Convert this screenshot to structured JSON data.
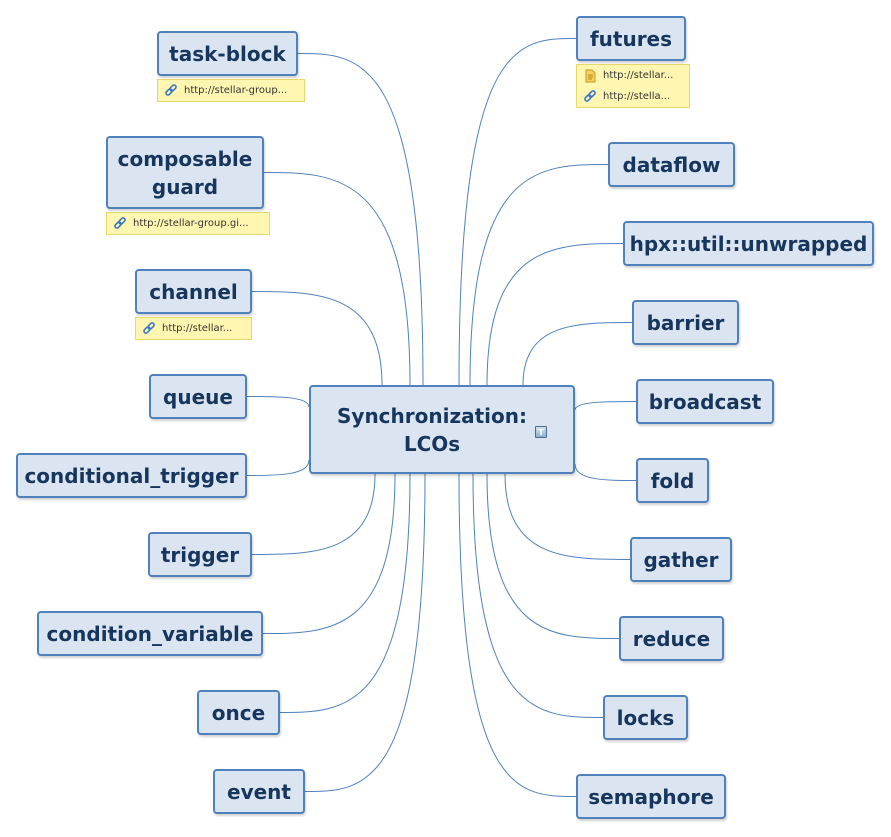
{
  "center": {
    "label": "Synchronization: LCOs",
    "icon": "note-icon",
    "icon_text": "T"
  },
  "left_topics": [
    {
      "name": "topic-task-block",
      "label": "task-block",
      "attachments": [
        {
          "icon": "link-icon",
          "text": "http://stellar-group..."
        }
      ]
    },
    {
      "name": "topic-composable-guard",
      "label": "composable guard",
      "attachments": [
        {
          "icon": "link-icon",
          "text": "http://stellar-group.gi..."
        }
      ]
    },
    {
      "name": "topic-channel",
      "label": "channel",
      "attachments": [
        {
          "icon": "link-icon",
          "text": "http://stellar..."
        }
      ]
    },
    {
      "name": "topic-queue",
      "label": "queue",
      "attachments": []
    },
    {
      "name": "topic-conditional-trigger",
      "label": "conditional_trigger",
      "attachments": []
    },
    {
      "name": "topic-trigger",
      "label": "trigger",
      "attachments": []
    },
    {
      "name": "topic-condition-variable",
      "label": "condition_variable",
      "attachments": []
    },
    {
      "name": "topic-once",
      "label": "once",
      "attachments": []
    },
    {
      "name": "topic-event",
      "label": "event",
      "attachments": []
    }
  ],
  "right_topics": [
    {
      "name": "topic-futures",
      "label": "futures",
      "attachments": [
        {
          "icon": "document-icon",
          "text": "http://stellar..."
        },
        {
          "icon": "link-icon",
          "text": "http://stella..."
        }
      ]
    },
    {
      "name": "topic-dataflow",
      "label": "dataflow",
      "attachments": []
    },
    {
      "name": "topic-unwrapped",
      "label": "hpx::util::unwrapped",
      "attachments": []
    },
    {
      "name": "topic-barrier",
      "label": "barrier",
      "attachments": []
    },
    {
      "name": "topic-broadcast",
      "label": "broadcast",
      "attachments": []
    },
    {
      "name": "topic-fold",
      "label": "fold",
      "attachments": []
    },
    {
      "name": "topic-gather",
      "label": "gather",
      "attachments": []
    },
    {
      "name": "topic-reduce",
      "label": "reduce",
      "attachments": []
    },
    {
      "name": "topic-locks",
      "label": "locks",
      "attachments": []
    },
    {
      "name": "topic-semaphore",
      "label": "semaphore",
      "attachments": []
    }
  ],
  "colors": {
    "node_fill": "#dbe5f1",
    "node_border": "#4f81bd",
    "node_text": "#17365d",
    "connector": "#4f81bd",
    "attachment_fill": "#fff6b2"
  }
}
